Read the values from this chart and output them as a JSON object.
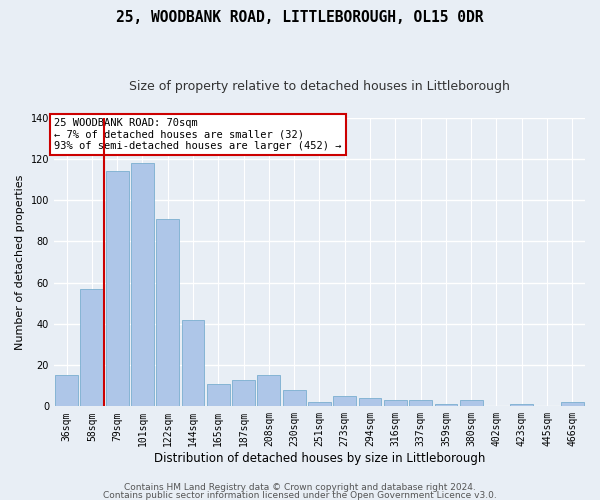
{
  "title": "25, WOODBANK ROAD, LITTLEBOROUGH, OL15 0DR",
  "subtitle": "Size of property relative to detached houses in Littleborough",
  "xlabel": "Distribution of detached houses by size in Littleborough",
  "ylabel": "Number of detached properties",
  "categories": [
    "36sqm",
    "58sqm",
    "79sqm",
    "101sqm",
    "122sqm",
    "144sqm",
    "165sqm",
    "187sqm",
    "208sqm",
    "230sqm",
    "251sqm",
    "273sqm",
    "294sqm",
    "316sqm",
    "337sqm",
    "359sqm",
    "380sqm",
    "402sqm",
    "423sqm",
    "445sqm",
    "466sqm"
  ],
  "values": [
    15,
    57,
    114,
    118,
    91,
    42,
    11,
    13,
    15,
    8,
    2,
    5,
    4,
    3,
    3,
    1,
    3,
    0,
    1,
    0,
    2
  ],
  "bar_color": "#aec6e8",
  "bar_edge_color": "#7aaed0",
  "vline_color": "#cc0000",
  "vline_x": 1.5,
  "annotation_text": "25 WOODBANK ROAD: 70sqm\n← 7% of detached houses are smaller (32)\n93% of semi-detached houses are larger (452) →",
  "annotation_box_color": "#ffffff",
  "annotation_box_edge": "#cc0000",
  "ylim": [
    0,
    140
  ],
  "yticks": [
    0,
    20,
    40,
    60,
    80,
    100,
    120,
    140
  ],
  "footer1": "Contains HM Land Registry data © Crown copyright and database right 2024.",
  "footer2": "Contains public sector information licensed under the Open Government Licence v3.0.",
  "bg_color": "#e8eef5",
  "plot_bg_color": "#e8eef5",
  "grid_color": "#ffffff",
  "title_fontsize": 10.5,
  "subtitle_fontsize": 9,
  "ylabel_fontsize": 8,
  "xlabel_fontsize": 8.5,
  "tick_fontsize": 7,
  "annotation_fontsize": 7.5,
  "footer_fontsize": 6.5
}
